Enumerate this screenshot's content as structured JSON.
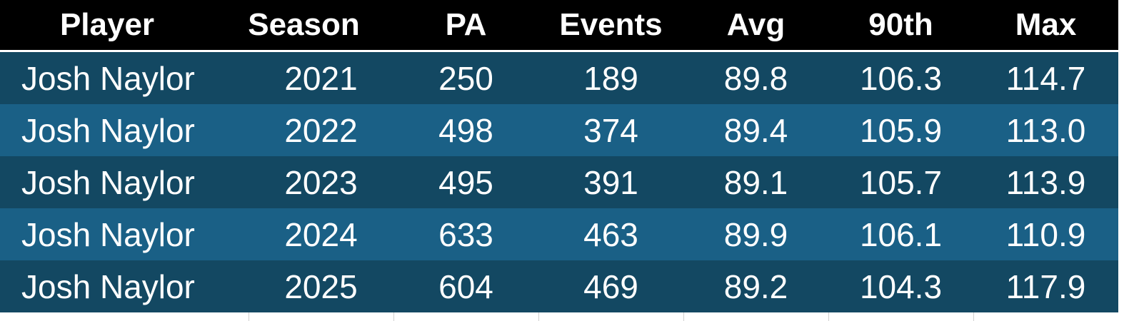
{
  "table": {
    "columns": [
      "Player",
      "Season",
      "PA",
      "Events",
      "Avg",
      "90th",
      "Max"
    ],
    "rows": [
      [
        "Josh Naylor",
        "2021",
        "250",
        "189",
        "89.8",
        "106.3",
        "114.7"
      ],
      [
        "Josh Naylor",
        "2022",
        "498",
        "374",
        "89.4",
        "105.9",
        "113.0"
      ],
      [
        "Josh Naylor",
        "2023",
        "495",
        "391",
        "89.1",
        "105.7",
        "113.9"
      ],
      [
        "Josh Naylor",
        "2024",
        "633",
        "463",
        "89.9",
        "106.1",
        "110.9"
      ],
      [
        "Josh Naylor",
        "2025",
        "604",
        "469",
        "89.2",
        "104.3",
        "117.9"
      ]
    ]
  }
}
